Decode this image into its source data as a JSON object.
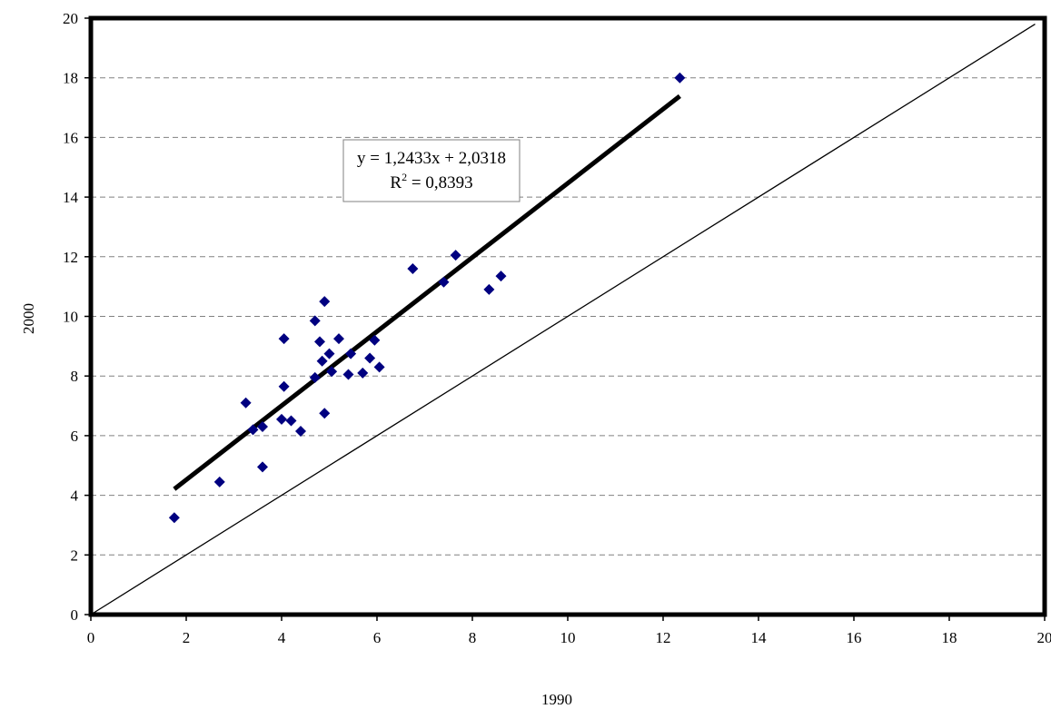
{
  "chart_data": {
    "type": "scatter",
    "title": "",
    "xlabel": "1990",
    "ylabel": "2000",
    "xlim": [
      0,
      20
    ],
    "ylim": [
      0,
      20
    ],
    "xticks": [
      0,
      2,
      4,
      6,
      8,
      10,
      12,
      14,
      16,
      18,
      20
    ],
    "yticks": [
      0,
      2,
      4,
      6,
      8,
      10,
      12,
      14,
      16,
      18,
      20
    ],
    "grid": "horizontal-dashed",
    "legend": "none",
    "series": [
      {
        "points": [
          [
            1.75,
            3.25
          ],
          [
            2.7,
            4.45
          ],
          [
            3.25,
            7.1
          ],
          [
            3.4,
            6.2
          ],
          [
            3.6,
            6.3
          ],
          [
            3.6,
            4.95
          ],
          [
            4.0,
            6.55
          ],
          [
            4.05,
            7.65
          ],
          [
            4.05,
            9.25
          ],
          [
            4.2,
            6.5
          ],
          [
            4.4,
            6.15
          ],
          [
            4.7,
            9.85
          ],
          [
            4.7,
            7.95
          ],
          [
            4.8,
            9.15
          ],
          [
            4.85,
            8.5
          ],
          [
            4.9,
            6.75
          ],
          [
            4.9,
            10.5
          ],
          [
            5.0,
            8.75
          ],
          [
            5.05,
            8.15
          ],
          [
            5.2,
            9.25
          ],
          [
            5.4,
            8.05
          ],
          [
            5.45,
            8.75
          ],
          [
            5.7,
            8.1
          ],
          [
            5.85,
            8.6
          ],
          [
            5.95,
            9.2
          ],
          [
            6.05,
            8.3
          ],
          [
            6.75,
            11.6
          ],
          [
            7.4,
            11.15
          ],
          [
            7.65,
            12.05
          ],
          [
            8.35,
            10.9
          ],
          [
            8.6,
            11.35
          ],
          [
            12.35,
            18.0
          ]
        ]
      }
    ],
    "trendline": {
      "equation": "y = 1,2433x + 2,0318",
      "r2_label": "R",
      "r2_value": " = 0,8393",
      "slope": 1.2433,
      "intercept": 2.0318,
      "x_range": [
        1.75,
        12.35
      ]
    },
    "reference_line": {
      "slope": 1,
      "intercept": 0,
      "x_range": [
        0,
        19.8
      ]
    },
    "colors": {
      "marker": "#000080",
      "trendline": "#000000",
      "grid": "#808080",
      "frame": "#000000"
    }
  }
}
